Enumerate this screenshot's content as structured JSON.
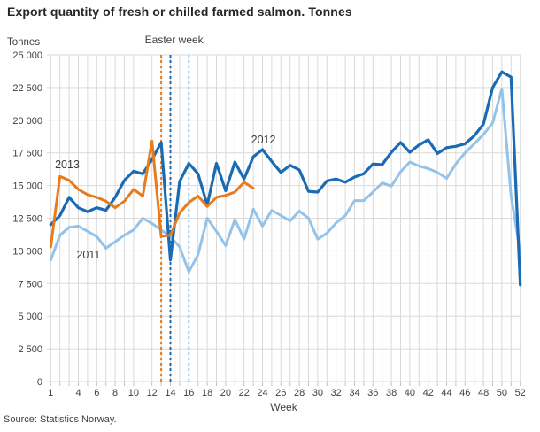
{
  "title": "Export quantity of fresh or chilled farmed salmon. Tonnes",
  "source": "Source: Statistics Norway.",
  "chart_data": {
    "type": "line",
    "title": "Export quantity of fresh or chilled farmed salmon. Tonnes",
    "xlabel": "Week",
    "ylabel": "Tonnes",
    "ylim": [
      0,
      25000
    ],
    "ytick_step": 2500,
    "ytick_labels": [
      "0",
      "2 500",
      "5 000",
      "7 500",
      "10 000",
      "12 500",
      "15 000",
      "17 500",
      "20 000",
      "22 500",
      "25 000"
    ],
    "xticks": [
      1,
      4,
      6,
      8,
      10,
      12,
      14,
      16,
      18,
      20,
      22,
      24,
      26,
      28,
      30,
      32,
      34,
      36,
      38,
      40,
      42,
      44,
      46,
      48,
      50,
      52
    ],
    "x_range": [
      1,
      52
    ],
    "grid": "both",
    "grid_color": "#d9d9d9",
    "tick_color": "#c2c2c2",
    "text_color": "#404040",
    "easter_label": "Easter week",
    "easter_lines": [
      {
        "year": "2013",
        "week": 13,
        "color": "#e87b1c"
      },
      {
        "year": "2012",
        "week": 14,
        "color": "#1a6bb3"
      },
      {
        "year": "2011",
        "week": 16,
        "color": "#94c3ea"
      }
    ],
    "series": [
      {
        "name": "2011",
        "color": "#94c3ea",
        "width": 3,
        "values": [
          9300,
          11200,
          11800,
          11900,
          11500,
          11100,
          10200,
          10700,
          11200,
          11600,
          12500,
          12100,
          11600,
          11100,
          10300,
          8400,
          9700,
          12500,
          11500,
          10400,
          12400,
          10900,
          13200,
          11900,
          13100,
          12700,
          12300,
          13050,
          12500,
          10900,
          11350,
          12150,
          12700,
          13850,
          13850,
          14500,
          15200,
          14950,
          16050,
          16800,
          16500,
          16300,
          16000,
          15550,
          16650,
          17500,
          18200,
          18900,
          19800,
          22400,
          14200,
          9900
        ]
      },
      {
        "name": "2012",
        "color": "#1a6bb3",
        "width": 3.2,
        "values": [
          12000,
          12700,
          14100,
          13300,
          13000,
          13300,
          13100,
          14100,
          15400,
          16100,
          15900,
          17000,
          18300,
          9300,
          15300,
          16700,
          15900,
          13500,
          16700,
          14600,
          16800,
          15500,
          17200,
          17750,
          16850,
          16000,
          16550,
          16200,
          14550,
          14500,
          15350,
          15500,
          15250,
          15650,
          15900,
          16650,
          16600,
          17550,
          18300,
          17550,
          18100,
          18500,
          17450,
          17900,
          18000,
          18200,
          18800,
          19700,
          22500,
          23700,
          23300,
          7400
        ]
      },
      {
        "name": "2013",
        "color": "#e87b1c",
        "width": 3,
        "values": [
          10300,
          15700,
          15400,
          14700,
          14300,
          14100,
          13800,
          13300,
          13800,
          14700,
          14200,
          18400,
          11100,
          11200,
          12900,
          13700,
          14200,
          13400,
          14100,
          14250,
          14500,
          15250,
          14800
        ]
      }
    ],
    "annotations": [
      {
        "text": "2013",
        "week": 2.8,
        "value": 16600
      },
      {
        "text": "2011",
        "week": 5.1,
        "value": 9700
      },
      {
        "text": "2012",
        "week": 24.1,
        "value": 18500
      }
    ]
  }
}
